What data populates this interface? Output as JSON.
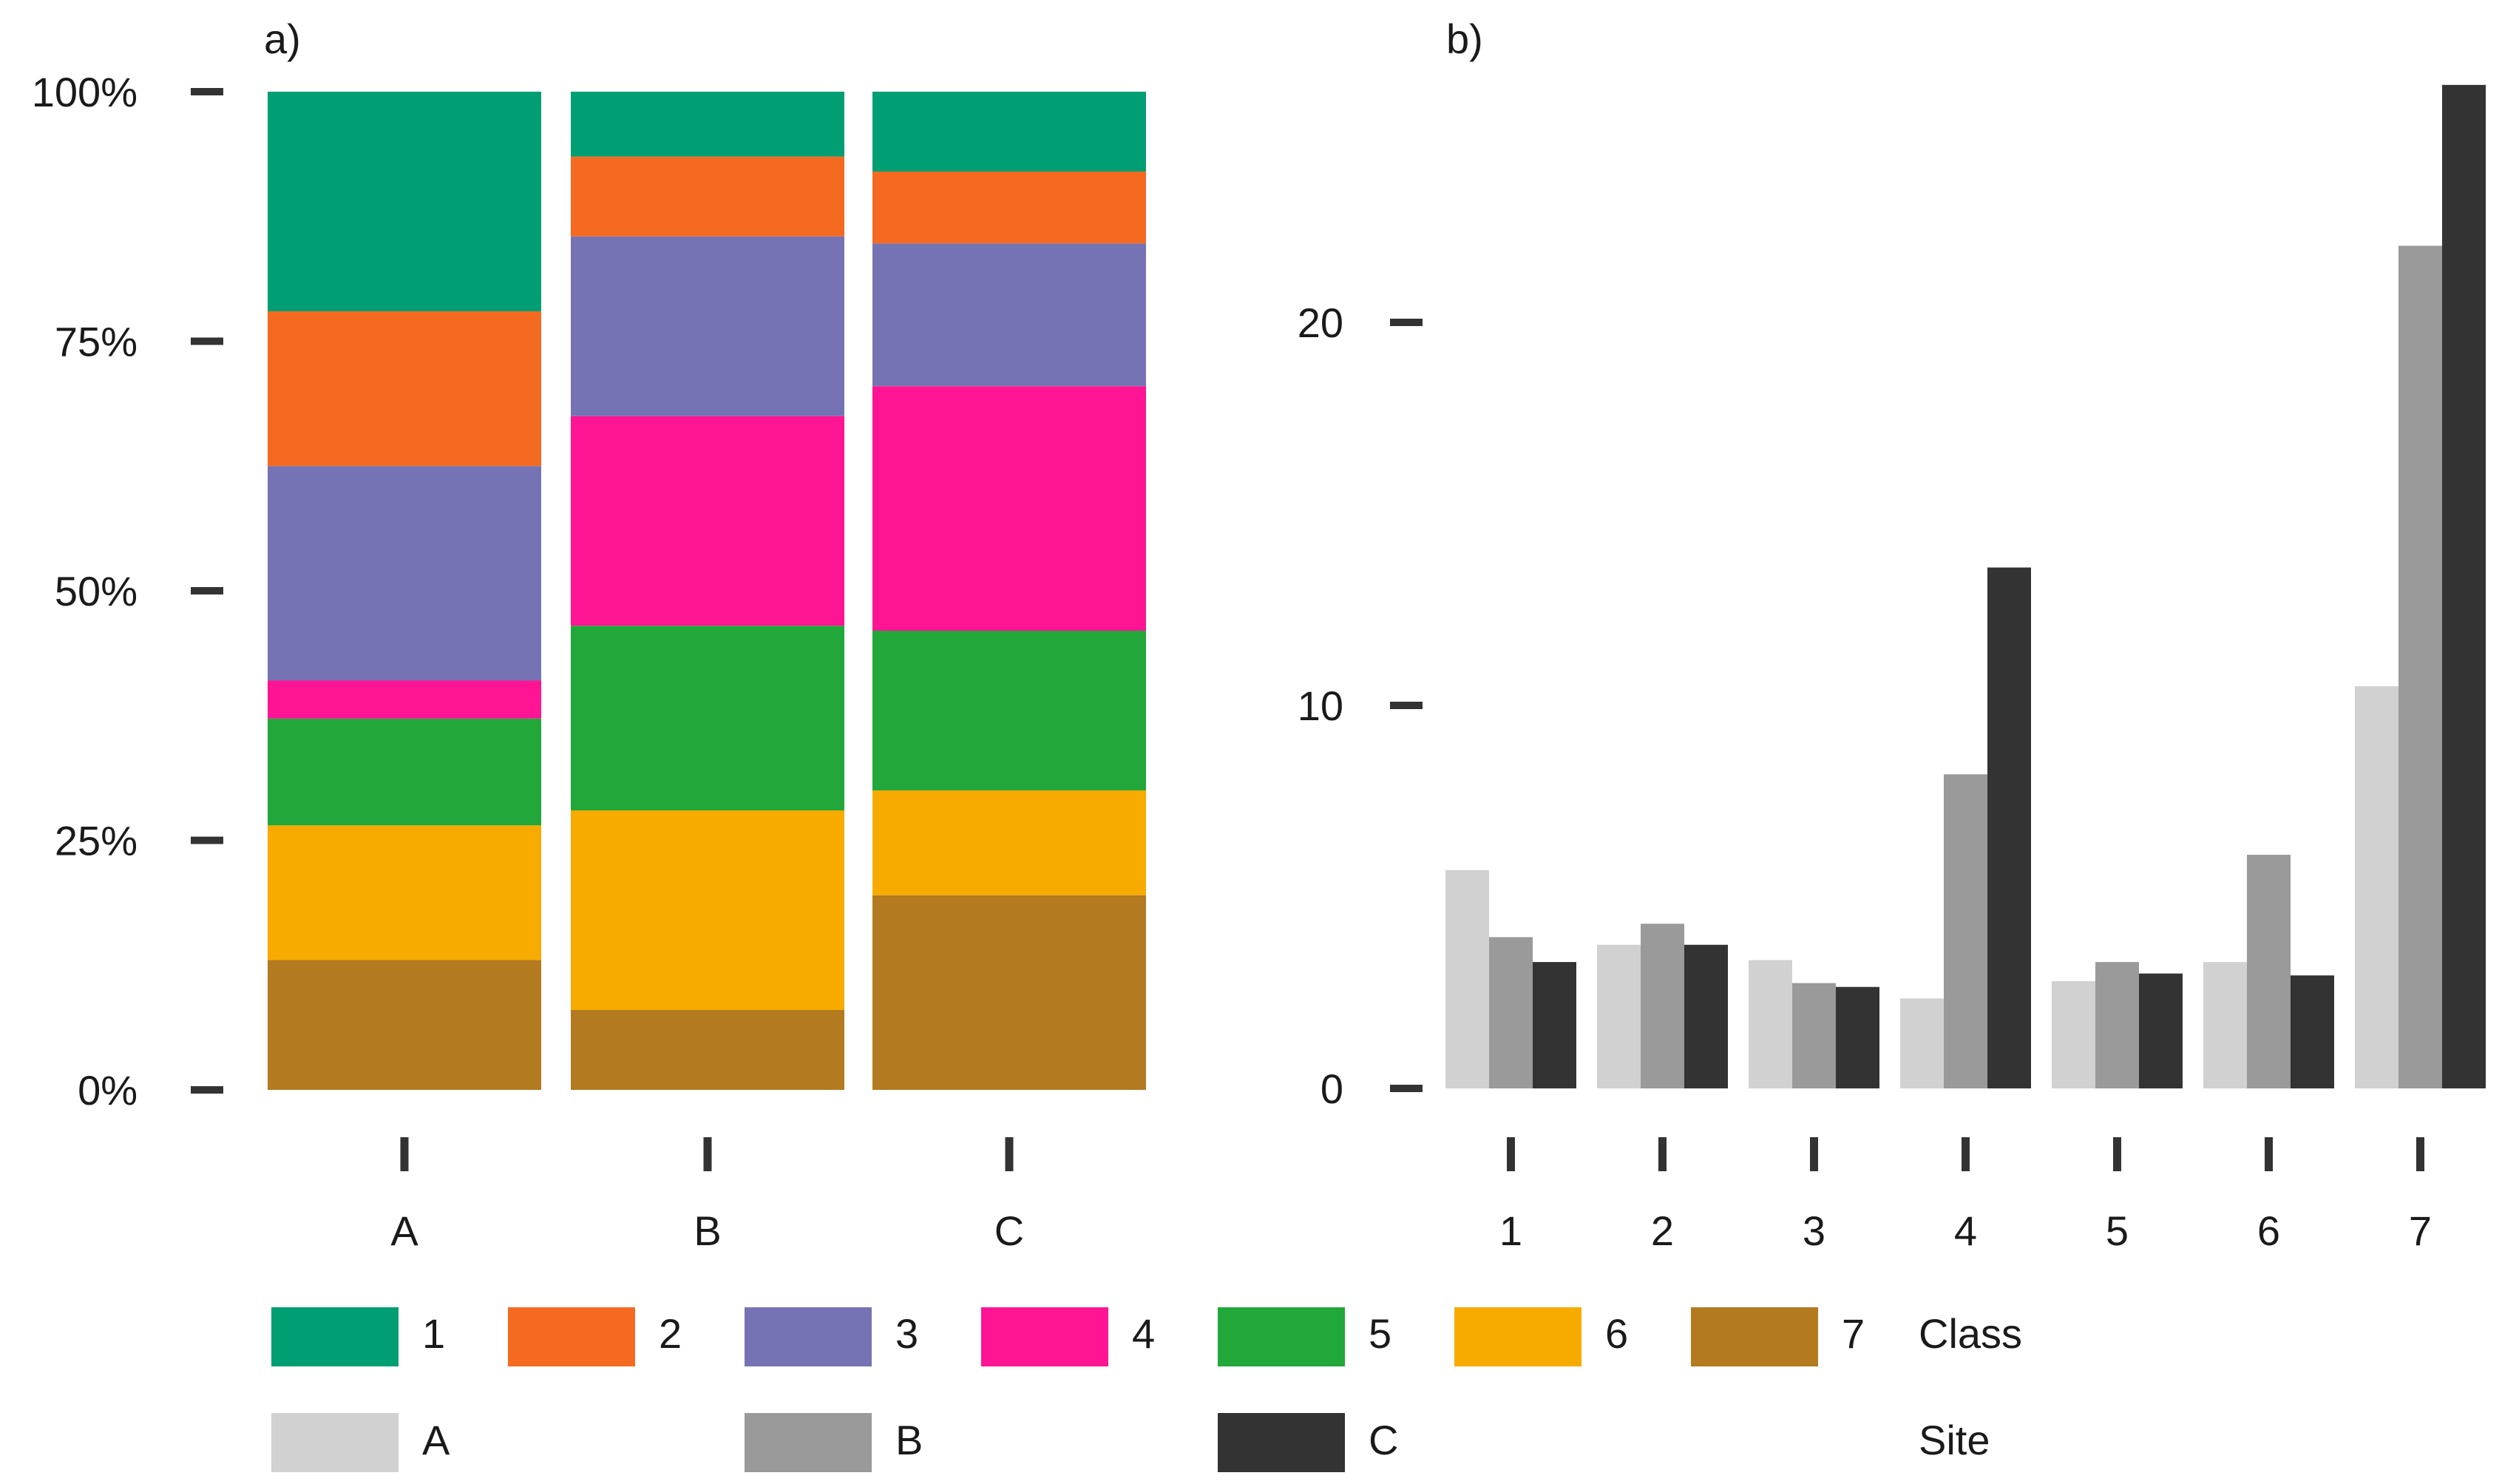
{
  "chart_data": [
    {
      "type": "bar",
      "stacked": true,
      "normalized": true,
      "panel_label": "a)",
      "categories": [
        "A",
        "B",
        "C"
      ],
      "y_ticks": [
        "0%",
        "25%",
        "50%",
        "75%",
        "100%"
      ],
      "ylim": [
        0,
        1
      ],
      "series": [
        {
          "name": "1",
          "values": [
            0.22,
            0.065,
            0.08
          ]
        },
        {
          "name": "2",
          "values": [
            0.155,
            0.08,
            0.072
          ]
        },
        {
          "name": "3",
          "values": [
            0.215,
            0.18,
            0.143
          ]
        },
        {
          "name": "4",
          "values": [
            0.038,
            0.21,
            0.245
          ]
        },
        {
          "name": "5",
          "values": [
            0.107,
            0.185,
            0.16
          ]
        },
        {
          "name": "6",
          "values": [
            0.135,
            0.2,
            0.105
          ]
        },
        {
          "name": "7",
          "values": [
            0.13,
            0.08,
            0.195
          ]
        }
      ],
      "legend_title": "Class"
    },
    {
      "type": "bar",
      "grouped": true,
      "panel_label": "b)",
      "categories": [
        "1",
        "2",
        "3",
        "4",
        "5",
        "6",
        "7"
      ],
      "y_ticks": [
        "0",
        "10",
        "20"
      ],
      "ylim": [
        0,
        26.2
      ],
      "series": [
        {
          "name": "A",
          "values": [
            5.7,
            3.75,
            3.35,
            2.35,
            2.8,
            3.3,
            10.5
          ]
        },
        {
          "name": "B",
          "values": [
            3.95,
            4.3,
            2.75,
            8.2,
            3.3,
            6.1,
            22.0
          ]
        },
        {
          "name": "C",
          "values": [
            3.3,
            3.75,
            2.65,
            13.6,
            3.0,
            2.95,
            26.2
          ]
        }
      ],
      "legend_title": "Site"
    }
  ],
  "colors": {
    "classes": [
      "#009E73",
      "#F46A21",
      "#7673B4",
      "#FF1493",
      "#22A73A",
      "#F7AB00",
      "#B37A20"
    ],
    "sites": [
      "#D1D1D1",
      "#9A9A9A",
      "#333333"
    ],
    "tick": "#333333"
  }
}
